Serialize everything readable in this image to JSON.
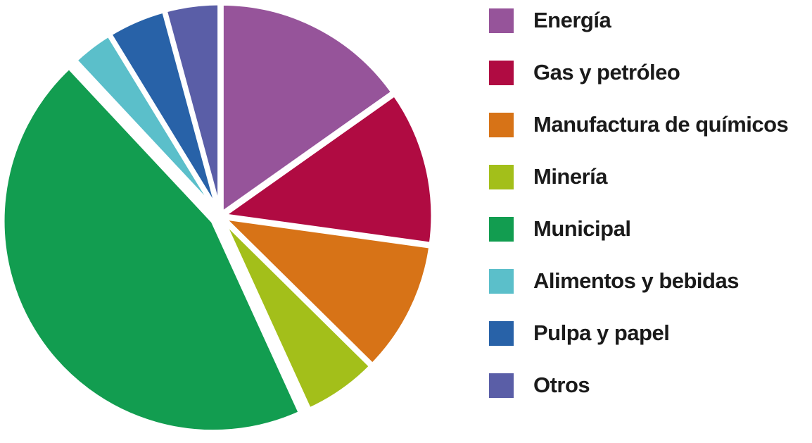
{
  "chart_data": {
    "type": "pie",
    "title": "",
    "legend_position": "right",
    "start_angle_deg": 0,
    "direction": "clockwise",
    "slices": [
      {
        "label": "Energía",
        "value": 15.5,
        "color": "#96549a"
      },
      {
        "label": "Gas y petróleo",
        "value": 12.2,
        "color": "#b00b42"
      },
      {
        "label": "Manufactura de químicos",
        "value": 10.4,
        "color": "#d77317"
      },
      {
        "label": "Minería",
        "value": 5.9,
        "color": "#a3bf1a"
      },
      {
        "label": "Municipal",
        "value": 45.7,
        "color": "#129d50"
      },
      {
        "label": "Alimentos y bebidas",
        "value": 3.3,
        "color": "#5bbfca"
      },
      {
        "label": "Pulpa y papel",
        "value": 4.6,
        "color": "#2862a8"
      },
      {
        "label": "Otros",
        "value": 4.3,
        "color": "#5a5ea7"
      }
    ]
  }
}
